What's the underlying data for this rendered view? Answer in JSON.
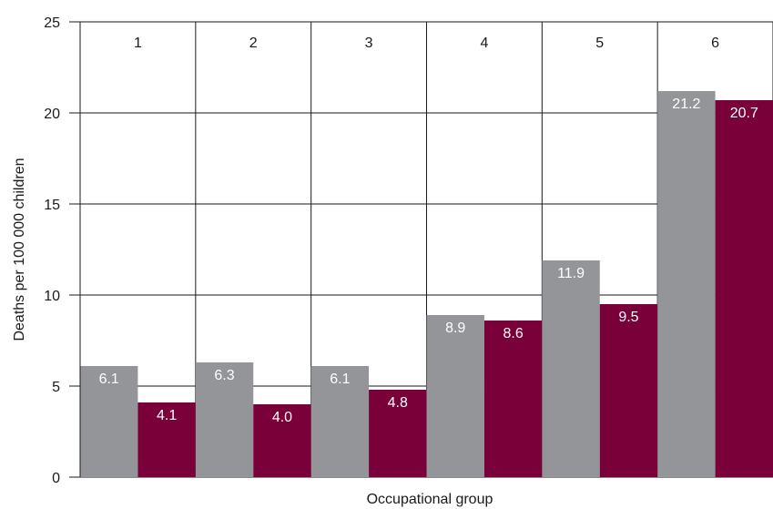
{
  "chart_data": {
    "type": "bar",
    "title": "",
    "xlabel": "Occupational group",
    "ylabel": "Deaths per 100 000 children",
    "ylim": [
      0,
      25
    ],
    "yticks": [
      0,
      5,
      10,
      15,
      20,
      25
    ],
    "grid": true,
    "legend": "none",
    "categories": [
      "1",
      "2",
      "3",
      "4",
      "5",
      "6"
    ],
    "series": [
      {
        "color": "#939598",
        "values": [
          6.1,
          6.3,
          6.1,
          8.9,
          11.9,
          21.2
        ],
        "labels": [
          "6.1",
          "6.3",
          "6.1",
          "8.9",
          "11.9",
          "21.2"
        ]
      },
      {
        "color": "#7a0039",
        "values": [
          4.1,
          4.0,
          4.8,
          8.6,
          9.5,
          20.7
        ],
        "labels": [
          "4.1",
          "4.0",
          "4.8",
          "8.6",
          "9.5",
          "20.7"
        ]
      }
    ]
  }
}
